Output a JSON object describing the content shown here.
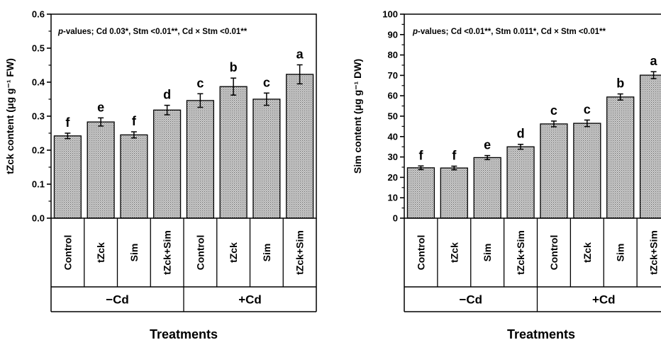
{
  "chart_data": [
    {
      "type": "bar",
      "ylabel": "tZck content (μg g⁻¹ FW)",
      "xlabel": "Treatments",
      "ylim": [
        0,
        0.6
      ],
      "yticks": [
        "0.0",
        "0.1",
        "0.2",
        "0.3",
        "0.4",
        "0.5",
        "0.6"
      ],
      "annotation_italic": "p",
      "annotation_rest": "-values; Cd 0.03*, Stm <0.01**, Cd × Stm <0.01**",
      "categories": [
        "Control",
        "tZck",
        "Sim",
        "tZck+Sim",
        "Control",
        "tZck",
        "Sim",
        "tZck+Sim"
      ],
      "groups": [
        "−Cd",
        "+Cd"
      ],
      "values": [
        0.242,
        0.283,
        0.245,
        0.318,
        0.346,
        0.387,
        0.35,
        0.423
      ],
      "errors": [
        0.008,
        0.012,
        0.009,
        0.014,
        0.02,
        0.025,
        0.018,
        0.028
      ],
      "letters": [
        "f",
        "e",
        "f",
        "d",
        "c",
        "b",
        "c",
        "a"
      ]
    },
    {
      "type": "bar",
      "ylabel": "Sim content (μg g⁻¹ DW)",
      "xlabel": "Treatments",
      "ylim": [
        0,
        100
      ],
      "yticks": [
        "0",
        "10",
        "20",
        "30",
        "40",
        "50",
        "60",
        "70",
        "80",
        "90",
        "100"
      ],
      "annotation_italic": "p",
      "annotation_rest": "-values; Cd <0.01**, Stm 0.011*, Cd × Stm <0.01**",
      "categories": [
        "Control",
        "tZck",
        "Sim",
        "tZck+Sim",
        "Control",
        "tZck",
        "Sim",
        "tZck+Sim"
      ],
      "groups": [
        "−Cd",
        "+Cd"
      ],
      "values": [
        24.7,
        24.6,
        29.7,
        35.0,
        46.2,
        46.5,
        59.4,
        70.1
      ],
      "errors": [
        0.9,
        0.9,
        1.0,
        1.2,
        1.4,
        1.6,
        1.5,
        1.7
      ],
      "letters": [
        "f",
        "f",
        "e",
        "d",
        "c",
        "c",
        "b",
        "a"
      ]
    }
  ]
}
